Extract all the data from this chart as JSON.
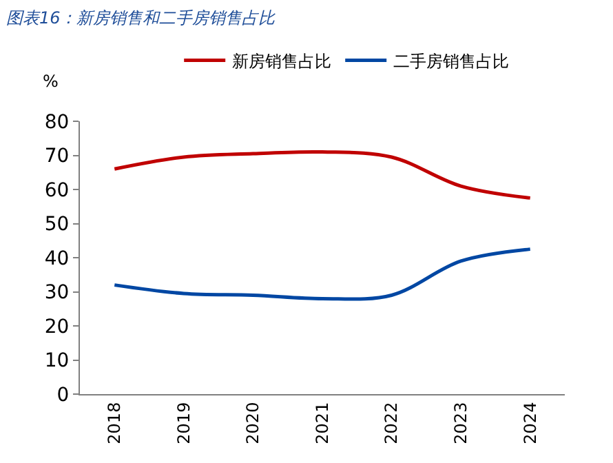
{
  "chart_data": {
    "type": "line",
    "title": "图表16：新房销售和二手房销售占比",
    "ylabel": "%",
    "categories": [
      "2018",
      "2019",
      "2020",
      "2021",
      "2022",
      "2023",
      "2024"
    ],
    "series": [
      {
        "name": "新房销售占比",
        "color": "#c00000",
        "values": [
          66,
          69.5,
          70.5,
          71,
          69.5,
          61,
          57.5
        ]
      },
      {
        "name": "二手房销售占比",
        "color": "#0047a3",
        "values": [
          32,
          29.5,
          29,
          28,
          29,
          39,
          42.5
        ]
      }
    ],
    "ylim": [
      0,
      80
    ],
    "yticks": [
      0,
      10,
      20,
      30,
      40,
      50,
      60,
      70,
      80
    ],
    "legend": "top",
    "marker": "none",
    "line_style": "solid"
  }
}
